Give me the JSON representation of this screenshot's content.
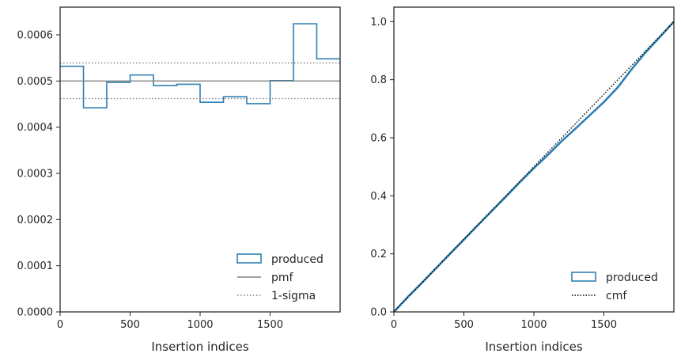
{
  "colors": {
    "produced": "#2e80b4",
    "pmf": "#808080",
    "sigma": "#808080",
    "cmf": "#000000",
    "axis": "#262626"
  },
  "chart_data": [
    {
      "type": "step",
      "xlabel": "Insertion indices",
      "ylabel": "",
      "xlim": [
        0,
        2000
      ],
      "ylim": [
        0,
        0.00066
      ],
      "xticks": [
        0,
        500,
        1000,
        1500
      ],
      "xtick_labels": [
        "0",
        "500",
        "1000",
        "1500"
      ],
      "yticks": [
        0,
        0.0001,
        0.0002,
        0.0003,
        0.0004,
        0.0005,
        0.0006
      ],
      "ytick_labels": [
        "0.0000",
        "0.0001",
        "0.0002",
        "0.0003",
        "0.0004",
        "0.0005",
        "0.0006"
      ],
      "grid": false,
      "legend_position": "lower-right",
      "bin_edges": [
        0,
        167,
        333,
        500,
        667,
        833,
        1000,
        1167,
        1333,
        1500,
        1667,
        1833,
        2000
      ],
      "series": [
        {
          "name": "produced",
          "kind": "histogram-step",
          "values": [
            0.000532,
            0.000442,
            0.000497,
            0.000513,
            0.00049,
            0.000493,
            0.000454,
            0.000466,
            0.000451,
            0.000501,
            0.000624,
            0.000548
          ]
        },
        {
          "name": "pmf",
          "kind": "hline",
          "y": 0.0005
        },
        {
          "name": "1-sigma",
          "kind": "hline-pair",
          "y": [
            0.000539,
            0.000462
          ]
        }
      ],
      "legend": [
        "produced",
        "pmf",
        "1-sigma"
      ]
    },
    {
      "type": "line",
      "xlabel": "Insertion indices",
      "ylabel": "",
      "xlim": [
        0,
        2000
      ],
      "ylim": [
        0,
        1.05
      ],
      "xticks": [
        0,
        500,
        1000,
        1500
      ],
      "xtick_labels": [
        "0",
        "500",
        "1000",
        "1500"
      ],
      "yticks": [
        0,
        0.2,
        0.4,
        0.6,
        0.8,
        1.0
      ],
      "ytick_labels": [
        "0.0",
        "0.2",
        "0.4",
        "0.6",
        "0.8",
        "1.0"
      ],
      "grid": false,
      "legend_position": "lower-right",
      "series": [
        {
          "name": "produced",
          "x": [
            0,
            100,
            200,
            300,
            400,
            500,
            600,
            700,
            800,
            900,
            1000,
            1100,
            1200,
            1300,
            1400,
            1500,
            1600,
            1700,
            1800,
            1900,
            2000
          ],
          "y": [
            0,
            0.052,
            0.1,
            0.15,
            0.2,
            0.249,
            0.299,
            0.348,
            0.397,
            0.447,
            0.495,
            0.541,
            0.589,
            0.633,
            0.678,
            0.723,
            0.774,
            0.837,
            0.895,
            0.947,
            1.0
          ]
        },
        {
          "name": "cmf",
          "x": [
            0,
            2000
          ],
          "y": [
            0,
            1.0
          ]
        }
      ],
      "legend": [
        "produced",
        "cmf"
      ]
    }
  ]
}
